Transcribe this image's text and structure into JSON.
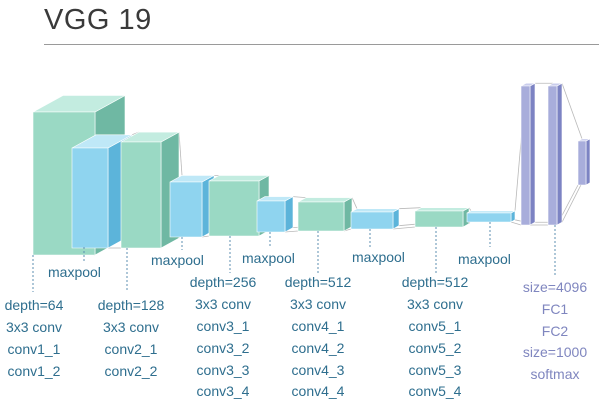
{
  "title": "VGG 19",
  "colors": {
    "conv_front": "#9ad9c4",
    "conv_side": "#6fb8a3",
    "conv_top": "#c3ece0",
    "pool_front": "#8fd4ef",
    "pool_side": "#5cb4da",
    "pool_top": "#bfe8f7",
    "fc_front": "#a8addb",
    "fc_side": "#7c83c3",
    "fc_top": "#cacdec",
    "label_text": "#2e6e8e",
    "fc_label_text": "#7f86bf",
    "dashed_line": "#5c8fb0",
    "edge_line": "#b9b9b9"
  },
  "labels": {
    "maxpool_1": "maxpool",
    "maxpool_2": "maxpool",
    "maxpool_3": "maxpool",
    "maxpool_4": "maxpool",
    "maxpool_5": "maxpool"
  },
  "blocks": {
    "block1": [
      "depth=64",
      "3x3 conv",
      "conv1_1",
      "conv1_2"
    ],
    "block2": [
      "depth=128",
      "3x3 conv",
      "conv2_1",
      "conv2_2"
    ],
    "block3": [
      "depth=256",
      "3x3 conv",
      "conv3_1",
      "conv3_2",
      "conv3_3",
      "conv3_4"
    ],
    "block4": [
      "depth=512",
      "3x3 conv",
      "conv4_1",
      "conv4_2",
      "conv4_3",
      "conv4_4"
    ],
    "block5": [
      "depth=512",
      "3x3 conv",
      "conv5_1",
      "conv5_2",
      "conv5_3",
      "conv5_4"
    ],
    "fc": [
      "size=4096",
      "FC1",
      "FC2",
      "size=1000",
      "softmax"
    ]
  }
}
